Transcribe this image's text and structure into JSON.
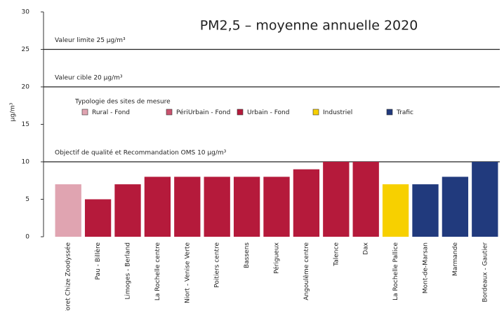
{
  "chart_data": {
    "type": "bar",
    "title": "PM2,5 – moyenne annuelle 2020",
    "y_label": "µg/m³",
    "categories": [
      "Foret Chize Zoodyssée",
      "Pau - Billère",
      "Limoges - Berland",
      "La Rochelle centre",
      "Niort - Venise Verte",
      "Poitiers centre",
      "Bassens",
      "Périgueux",
      "Angoulême centre",
      "Talence",
      "Dax",
      "La Rochelle Pallice",
      "Mont-de-Marsan",
      "Marmande",
      "Bordeaux - Gautier"
    ],
    "legend_title": "Typologie des sites de mesure",
    "series": [
      {
        "name": "Rural - Fond",
        "color": "#e0a4b1",
        "values": [
          7,
          null,
          null,
          null,
          null,
          null,
          null,
          null,
          null,
          null,
          null,
          null,
          null,
          null,
          null
        ]
      },
      {
        "name": "PériUrbain - Fond",
        "color": "#c9536e",
        "values": [
          null,
          null,
          null,
          null,
          null,
          null,
          null,
          null,
          null,
          null,
          null,
          null,
          null,
          null,
          null
        ]
      },
      {
        "name": "Urbain - Fond",
        "color": "#b51a3b",
        "values": [
          null,
          5,
          7,
          8,
          8,
          8,
          8,
          8,
          9,
          10,
          10,
          null,
          null,
          null,
          null
        ]
      },
      {
        "name": "Industriel",
        "color": "#f7d000",
        "values": [
          null,
          null,
          null,
          null,
          null,
          null,
          null,
          null,
          null,
          null,
          null,
          7,
          null,
          null,
          null
        ]
      },
      {
        "name": "Trafic",
        "color": "#213a7d",
        "values": [
          null,
          null,
          null,
          null,
          null,
          null,
          null,
          null,
          null,
          null,
          null,
          null,
          7,
          8,
          10
        ]
      }
    ],
    "reference_lines": [
      {
        "value": 25,
        "label": "Valeur limite 25 µg/m³"
      },
      {
        "value": 20,
        "label": "Valeur cible 20 µg/m³"
      },
      {
        "value": 10,
        "label": "Objectif de qualité et Recommandation OMS 10 µg/m³"
      }
    ],
    "ylim": [
      0,
      30
    ],
    "yticks": [
      0,
      5,
      10,
      15,
      20,
      25,
      30
    ]
  }
}
